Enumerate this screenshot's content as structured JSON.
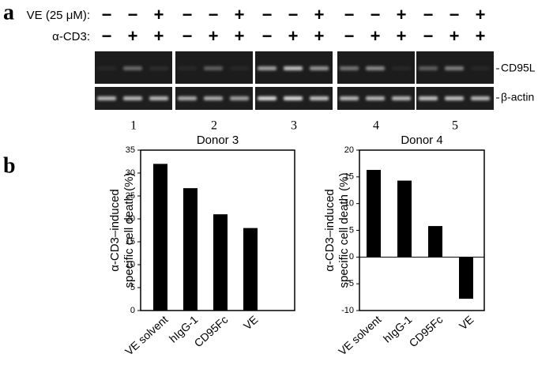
{
  "panel_a": {
    "label": "a",
    "ve_row_label": "VE (25 μM):",
    "cd3_row_label": "α-CD3:",
    "ve_signs": [
      "−",
      "−",
      "+",
      "−",
      "−",
      "+",
      "−",
      "−",
      "+",
      "−",
      "−",
      "+",
      "−",
      "−",
      "+"
    ],
    "cd3_signs": [
      "−",
      "+",
      "+",
      "−",
      "+",
      "+",
      "−",
      "+",
      "+",
      "−",
      "+",
      "+",
      "−",
      "+",
      "+"
    ],
    "gel_labels": [
      "CD95L",
      "β-actin"
    ],
    "donors": [
      "1",
      "2",
      "3",
      "4",
      "5"
    ]
  },
  "panel_b": {
    "label": "b"
  },
  "chart_data": [
    {
      "type": "bar",
      "title": "Donor 3",
      "ylabel": [
        "α-CD3–induced",
        "specific cell death (%)"
      ],
      "categories": [
        "VE solvent",
        "hIgG-1",
        "CD95Fc",
        "VE"
      ],
      "values": [
        32,
        26.7,
        21,
        18
      ],
      "color": "#000000",
      "ylim": [
        0,
        35
      ],
      "yticks": [
        0,
        5,
        10,
        15,
        20,
        25,
        30,
        35
      ]
    },
    {
      "type": "bar",
      "title": "Donor 4",
      "ylabel": [
        "α-CD3–induced",
        "specific cell death (%)"
      ],
      "categories": [
        "VE solvent",
        "hIgG-1",
        "CD95Fc",
        "VE"
      ],
      "values": [
        16.3,
        14.3,
        5.8,
        -7.8
      ],
      "color": "#000000",
      "ylim": [
        -10,
        20
      ],
      "yticks": [
        -10,
        -5,
        0,
        5,
        10,
        15,
        20
      ],
      "zero_line": true
    }
  ]
}
